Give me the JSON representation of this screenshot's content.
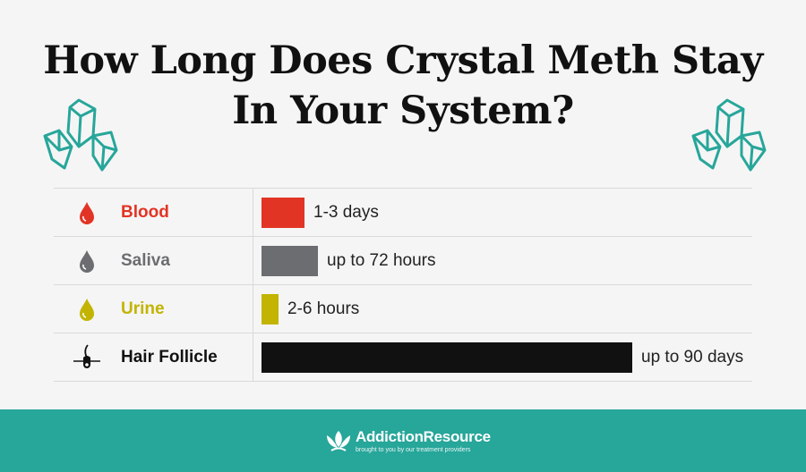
{
  "title_line1": "How Long Does Crystal Meth Stay",
  "title_line2": "In Your System?",
  "colors": {
    "accent": "#27a69a",
    "blood": "#e23425",
    "saliva": "#6b6d70",
    "urine": "#c2b400",
    "hair": "#111111"
  },
  "chart_data": {
    "type": "bar",
    "orientation": "horizontal",
    "categories": [
      "Blood",
      "Saliva",
      "Urine",
      "Hair Follicle"
    ],
    "values_label": [
      "1-3 days",
      "up to 72 hours",
      "2-6 hours",
      "up to 90 days"
    ],
    "values_hours": [
      72,
      72,
      6,
      2160
    ],
    "bar_fraction": [
      0.116,
      0.152,
      0.046,
      1.0
    ],
    "colors": [
      "#e23425",
      "#6b6d70",
      "#c2b400",
      "#111111"
    ],
    "icons": [
      "blood-drop-icon",
      "saliva-drop-icon",
      "urine-drop-icon",
      "hair-follicle-icon"
    ]
  },
  "footer": {
    "brand": "AddictionResource",
    "tagline": "brought to you by our treatment providers"
  }
}
